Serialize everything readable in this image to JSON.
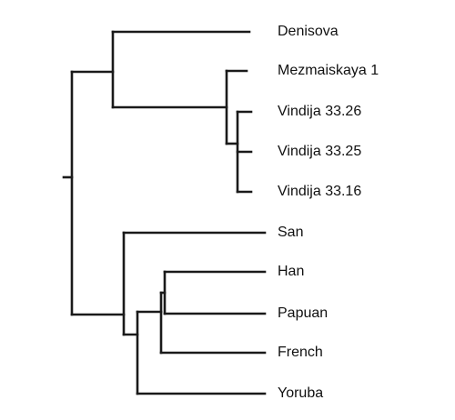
{
  "tree": {
    "leaves": [
      {
        "id": "denisova",
        "label": "Denisova"
      },
      {
        "id": "mezmaiskaya",
        "label": "Mezmaiskaya 1"
      },
      {
        "id": "vindija-3326",
        "label": "Vindija 33.26"
      },
      {
        "id": "vindija-3325",
        "label": "Vindija 33.25"
      },
      {
        "id": "vindija-3316",
        "label": "Vindija 33.16"
      },
      {
        "id": "san",
        "label": "San"
      },
      {
        "id": "han",
        "label": "Han"
      },
      {
        "id": "papuan",
        "label": "Papuan"
      },
      {
        "id": "french",
        "label": "French"
      },
      {
        "id": "yoruba",
        "label": "Yoruba"
      }
    ],
    "line_color": "#1a1a1a"
  }
}
